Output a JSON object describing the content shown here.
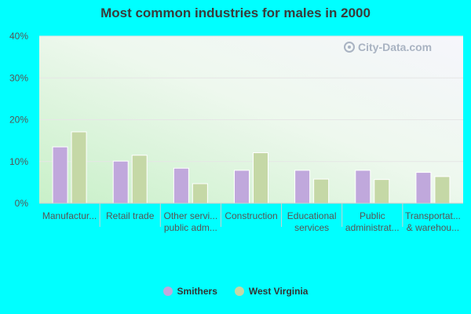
{
  "chart_data": {
    "type": "bar",
    "title": "Most common industries for males in 2000",
    "categories": [
      "Manufactur...",
      "Retail trade",
      "Other servi... public adm...",
      "Construction",
      "Educational services",
      "Public administrat...",
      "Transportat... & warehou..."
    ],
    "category_lines": [
      [
        "Manufactur..."
      ],
      [
        "Retail trade"
      ],
      [
        "Other servi...",
        "public adm..."
      ],
      [
        "Construction"
      ],
      [
        "Educational",
        "services"
      ],
      [
        "Public",
        "administrat..."
      ],
      [
        "Transportat...",
        "& warehou..."
      ]
    ],
    "series": [
      {
        "name": "Smithers",
        "color": "#c0a8dc",
        "values": [
          13.5,
          10.1,
          8.4,
          7.9,
          7.9,
          7.9,
          7.4
        ]
      },
      {
        "name": "West Virginia",
        "color": "#c5d8a6",
        "values": [
          17.1,
          11.5,
          4.7,
          12.1,
          5.8,
          5.7,
          6.4
        ]
      }
    ],
    "yticks": [
      "0%",
      "10%",
      "20%",
      "30%",
      "40%"
    ],
    "ylim": [
      0,
      40
    ],
    "xlabel": "",
    "ylabel": "",
    "grid": true,
    "legend_position": "bottom-center"
  },
  "watermark": {
    "text": "City-Data.com",
    "icon": "magnifier-icon"
  }
}
